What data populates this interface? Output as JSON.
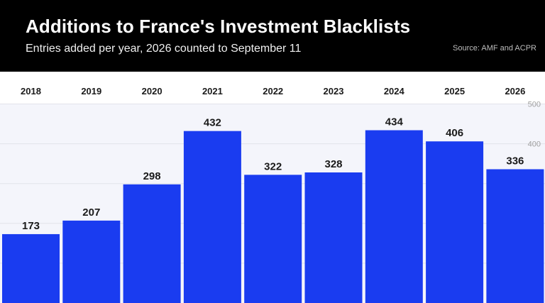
{
  "header": {
    "title": "Additions to France's Investment Blacklists",
    "subtitle": "Entries added per year, 2026 counted to September 11",
    "source": "Source: AMF and ACPR"
  },
  "colors": {
    "bar": "#1a3cf0",
    "header_bg": "#000000",
    "plot_bg": "#f4f5fb",
    "grid": "#e2e3ea"
  },
  "chart_data": {
    "type": "bar",
    "categories": [
      "2018",
      "2019",
      "2020",
      "2021",
      "2022",
      "2023",
      "2024",
      "2025",
      "2026"
    ],
    "values": [
      173,
      207,
      298,
      432,
      322,
      328,
      434,
      406,
      336
    ],
    "title": "Additions to France's Investment Blacklists",
    "subtitle": "Entries added per year, 2026 counted to September 11",
    "xlabel": "",
    "ylabel": "",
    "yticks": [
      400,
      500
    ],
    "ylim": [
      0,
      500
    ],
    "grid": true,
    "x_axis_position": "top",
    "data_labels": true
  }
}
